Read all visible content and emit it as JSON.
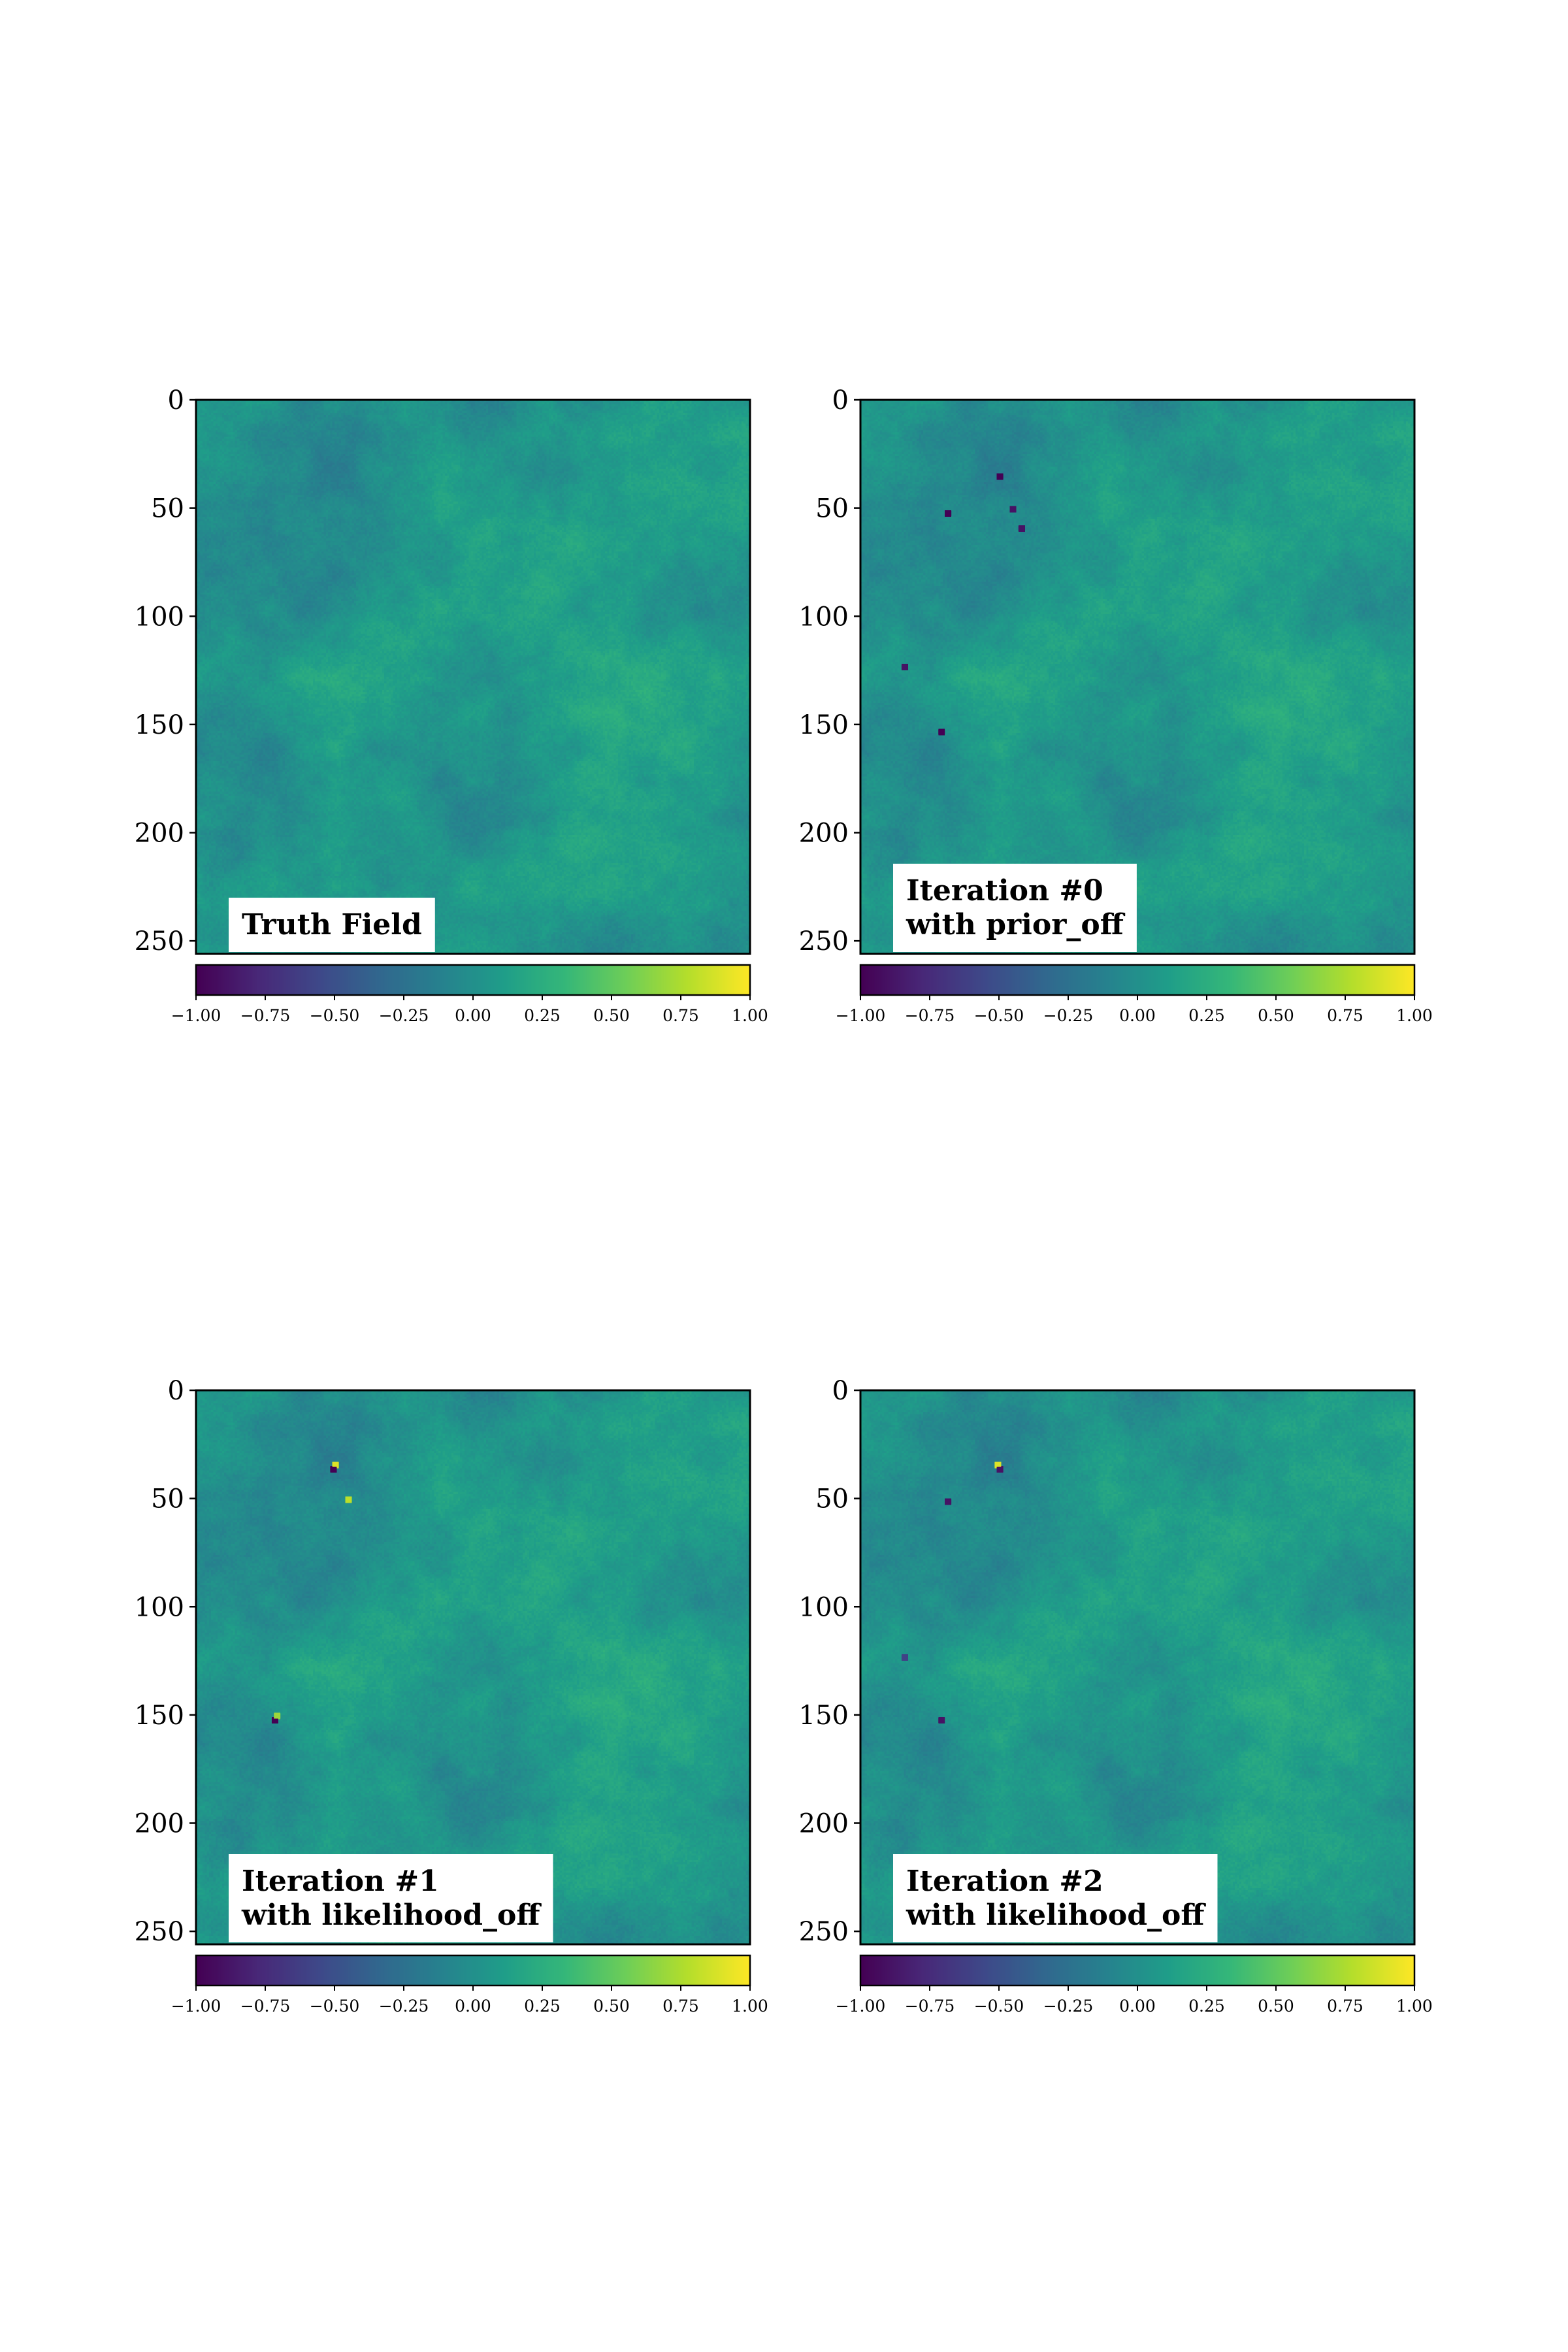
{
  "colormap": {
    "name": "viridis",
    "stops": [
      "#440154",
      "#482878",
      "#3e4989",
      "#31688e",
      "#26828e",
      "#1f9e89",
      "#35b779",
      "#6ece58",
      "#b5de2b",
      "#fde725"
    ]
  },
  "chart_data": [
    {
      "type": "heatmap",
      "annotation": "Truth Field",
      "image_extent": {
        "x": [
          0,
          256
        ],
        "y": [
          0,
          256
        ]
      },
      "yticks": [
        "0",
        "50",
        "100",
        "150",
        "200",
        "250"
      ],
      "ytick_values": [
        0,
        50,
        100,
        150,
        200,
        250
      ],
      "field_stats": {
        "mean": 0.0,
        "range": [
          -0.35,
          0.45
        ]
      },
      "colorbar": {
        "min": -1.0,
        "max": 1.0,
        "ticks": [
          "-1.00",
          "-0.75",
          "-0.50",
          "-0.25",
          "0.00",
          "0.25",
          "0.50",
          "0.75",
          "1.00"
        ],
        "tick_values": [
          -1,
          -0.75,
          -0.5,
          -0.25,
          0,
          0.25,
          0.5,
          0.75,
          1
        ]
      },
      "outliers": []
    },
    {
      "type": "heatmap",
      "annotation": "Iteration #0\nwith prior_off",
      "image_extent": {
        "x": [
          0,
          256
        ],
        "y": [
          0,
          256
        ]
      },
      "yticks": [
        "0",
        "50",
        "100",
        "150",
        "200",
        "250"
      ],
      "ytick_values": [
        0,
        50,
        100,
        150,
        200,
        250
      ],
      "field_stats": {
        "mean": 0.0,
        "range": [
          -0.35,
          0.45
        ]
      },
      "colorbar": {
        "min": -1.0,
        "max": 1.0,
        "ticks": [
          "-1.00",
          "-0.75",
          "-0.50",
          "-0.25",
          "0.00",
          "0.25",
          "0.50",
          "0.75",
          "1.00"
        ],
        "tick_values": [
          -1,
          -0.75,
          -0.5,
          -0.25,
          0,
          0.25,
          0.5,
          0.75,
          1
        ]
      },
      "outliers": [
        {
          "x": 64,
          "y": 35,
          "v": -1.0
        },
        {
          "x": 40,
          "y": 52,
          "v": -1.0
        },
        {
          "x": 70,
          "y": 50,
          "v": -0.9
        },
        {
          "x": 74,
          "y": 59,
          "v": -0.9
        },
        {
          "x": 20,
          "y": 123,
          "v": -0.9
        },
        {
          "x": 37,
          "y": 153,
          "v": -1.0
        }
      ]
    },
    {
      "type": "heatmap",
      "annotation": "Iteration #1\nwith likelihood_off",
      "image_extent": {
        "x": [
          0,
          256
        ],
        "y": [
          0,
          256
        ]
      },
      "yticks": [
        "0",
        "50",
        "100",
        "150",
        "200",
        "250"
      ],
      "ytick_values": [
        0,
        50,
        100,
        150,
        200,
        250
      ],
      "field_stats": {
        "mean": 0.0,
        "range": [
          -0.35,
          0.45
        ]
      },
      "colorbar": {
        "min": -1.0,
        "max": 1.0,
        "ticks": [
          "-1.00",
          "-0.75",
          "-0.50",
          "-0.25",
          "0.00",
          "0.25",
          "0.50",
          "0.75",
          "1.00"
        ],
        "tick_values": [
          -1,
          -0.75,
          -0.5,
          -0.25,
          0,
          0.25,
          0.5,
          0.75,
          1
        ]
      },
      "outliers": [
        {
          "x": 64,
          "y": 34,
          "v": 0.9
        },
        {
          "x": 63,
          "y": 36,
          "v": -1.0
        },
        {
          "x": 70,
          "y": 50,
          "v": 0.8
        },
        {
          "x": 36,
          "y": 152,
          "v": -1.0
        },
        {
          "x": 37,
          "y": 150,
          "v": 0.7
        }
      ]
    },
    {
      "type": "heatmap",
      "annotation": "Iteration #2\nwith likelihood_off",
      "image_extent": {
        "x": [
          0,
          256
        ],
        "y": [
          0,
          256
        ]
      },
      "yticks": [
        "0",
        "50",
        "100",
        "150",
        "200",
        "250"
      ],
      "ytick_values": [
        0,
        50,
        100,
        150,
        200,
        250
      ],
      "field_stats": {
        "mean": 0.0,
        "range": [
          -0.35,
          0.45
        ]
      },
      "colorbar": {
        "min": -1.0,
        "max": 1.0,
        "ticks": [
          "-1.00",
          "-0.75",
          "-0.50",
          "-0.25",
          "0.00",
          "0.25",
          "0.50",
          "0.75",
          "1.00"
        ],
        "tick_values": [
          -1,
          -0.75,
          -0.5,
          -0.25,
          0,
          0.25,
          0.5,
          0.75,
          1
        ]
      },
      "outliers": [
        {
          "x": 63,
          "y": 34,
          "v": 0.9
        },
        {
          "x": 64,
          "y": 36,
          "v": -0.9
        },
        {
          "x": 40,
          "y": 51,
          "v": -0.9
        },
        {
          "x": 37,
          "y": 152,
          "v": -0.9
        },
        {
          "x": 20,
          "y": 123,
          "v": -0.6
        }
      ]
    }
  ]
}
